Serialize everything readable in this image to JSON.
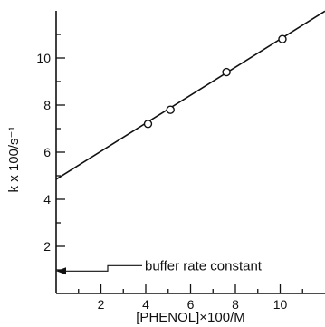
{
  "chart_data": {
    "type": "scatter",
    "xlabel": "[PHENOL]×100/M",
    "ylabel": "k x 100/s⁻¹",
    "xlim": [
      0,
      12
    ],
    "ylim": [
      0,
      12
    ],
    "xticks": [
      2,
      4,
      6,
      8,
      10
    ],
    "yticks": [
      2,
      4,
      6,
      8,
      10
    ],
    "xticks_minor": [
      1,
      3,
      5,
      7,
      9,
      11
    ],
    "yticks_minor": [
      1,
      3,
      5,
      7,
      9,
      11
    ],
    "x_tick_labels": [
      "2",
      "4",
      "6",
      "8",
      "10"
    ],
    "y_tick_labels": [
      "2",
      "4",
      "6",
      "8",
      "10"
    ],
    "grid": false,
    "series": [
      {
        "points": [
          {
            "x": 4.1,
            "y": 7.2
          },
          {
            "x": 5.1,
            "y": 7.8
          },
          {
            "x": 7.6,
            "y": 9.4
          },
          {
            "x": 10.1,
            "y": 10.8
          }
        ]
      }
    ],
    "fit_line": {
      "intercept": 4.85,
      "slope": 0.595
    },
    "annotations": [
      {
        "text": "buffer rate constant",
        "value": 0.95,
        "arrow": "left"
      }
    ]
  }
}
